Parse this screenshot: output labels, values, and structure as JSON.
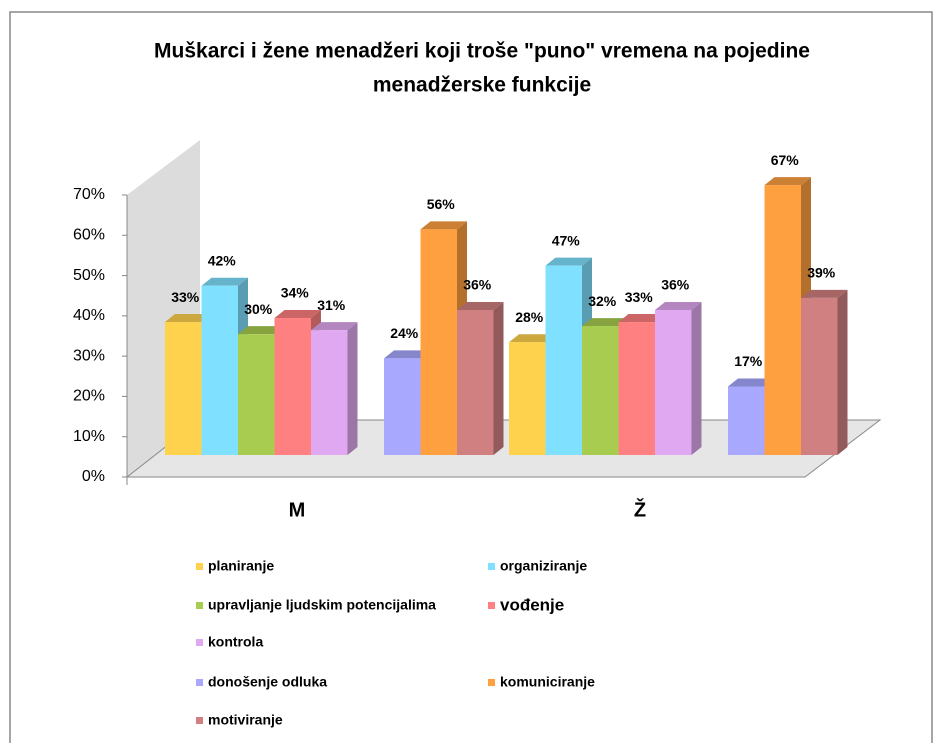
{
  "chart_data": {
    "type": "bar3d",
    "title": "Muškarci i žene menadžeri koji troše \"puno\" vremena na pojedine",
    "subtitle": "menadžerske funkcije",
    "categories": [
      "M",
      "Ž"
    ],
    "ylim": [
      0,
      70
    ],
    "yticks": [
      {
        "value": 0,
        "label": "0%"
      },
      {
        "value": 10,
        "label": "10%"
      },
      {
        "value": 20,
        "label": "20%"
      },
      {
        "value": 30,
        "label": "30%"
      },
      {
        "value": 40,
        "label": "40%"
      },
      {
        "value": 50,
        "label": "50%"
      },
      {
        "value": 60,
        "label": "60%"
      },
      {
        "value": 70,
        "label": "70%"
      }
    ],
    "series": [
      {
        "name": "planiranje",
        "color": "#ffd24d",
        "values": [
          33,
          28
        ],
        "value_labels": [
          "33%",
          "28%"
        ]
      },
      {
        "name": "organiziranje",
        "color": "#80e0ff",
        "values": [
          42,
          47
        ],
        "value_labels": [
          "42%",
          "47%"
        ]
      },
      {
        "name": "upravljanje ljudskim potencijalima",
        "color": "#a8cc50",
        "values": [
          30,
          32
        ],
        "value_labels": [
          "30%",
          "32%"
        ]
      },
      {
        "name": "vođenje",
        "color": "#ff8080",
        "values": [
          34,
          33
        ],
        "value_labels": [
          "34%",
          "33%"
        ]
      },
      {
        "name": "kontrola",
        "color": "#e0a8f0",
        "values": [
          31,
          36
        ],
        "value_labels": [
          "31%",
          "36%"
        ]
      },
      {
        "name": "donošenje odluka",
        "color": "#a8a8ff",
        "values": [
          24,
          17
        ],
        "value_labels": [
          "24%",
          "17%"
        ]
      },
      {
        "name": "komuniciranje",
        "color": "#ffa040",
        "values": [
          56,
          67
        ],
        "value_labels": [
          "56%",
          "67%"
        ]
      },
      {
        "name": "motiviranje",
        "color": "#d08080",
        "values": [
          36,
          39
        ],
        "value_labels": [
          "36%",
          "39%"
        ]
      }
    ]
  }
}
